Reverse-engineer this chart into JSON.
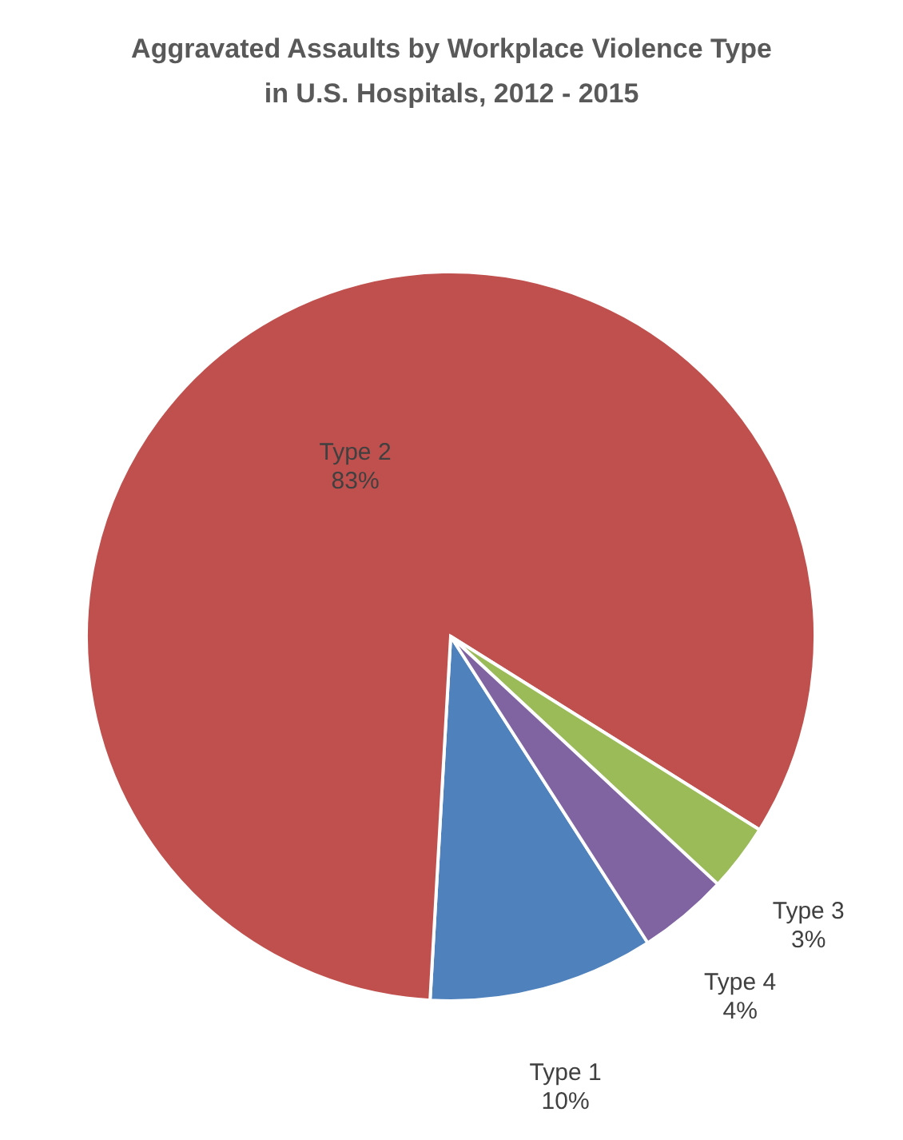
{
  "chart_data": {
    "type": "pie",
    "title": "Aggravated Assaults by Workplace Violence Type\nin U.S. Hospitals, 2012 - 2015",
    "categories": [
      "Type 1",
      "Type 2",
      "Type 3",
      "Type 4"
    ],
    "values": [
      10,
      83,
      3,
      4
    ],
    "colors": [
      "#4f81bd",
      "#c0504d",
      "#9bbb59",
      "#8064a2"
    ],
    "value_labels": [
      "10%",
      "83%",
      "3%",
      "4%"
    ],
    "legend": false
  }
}
